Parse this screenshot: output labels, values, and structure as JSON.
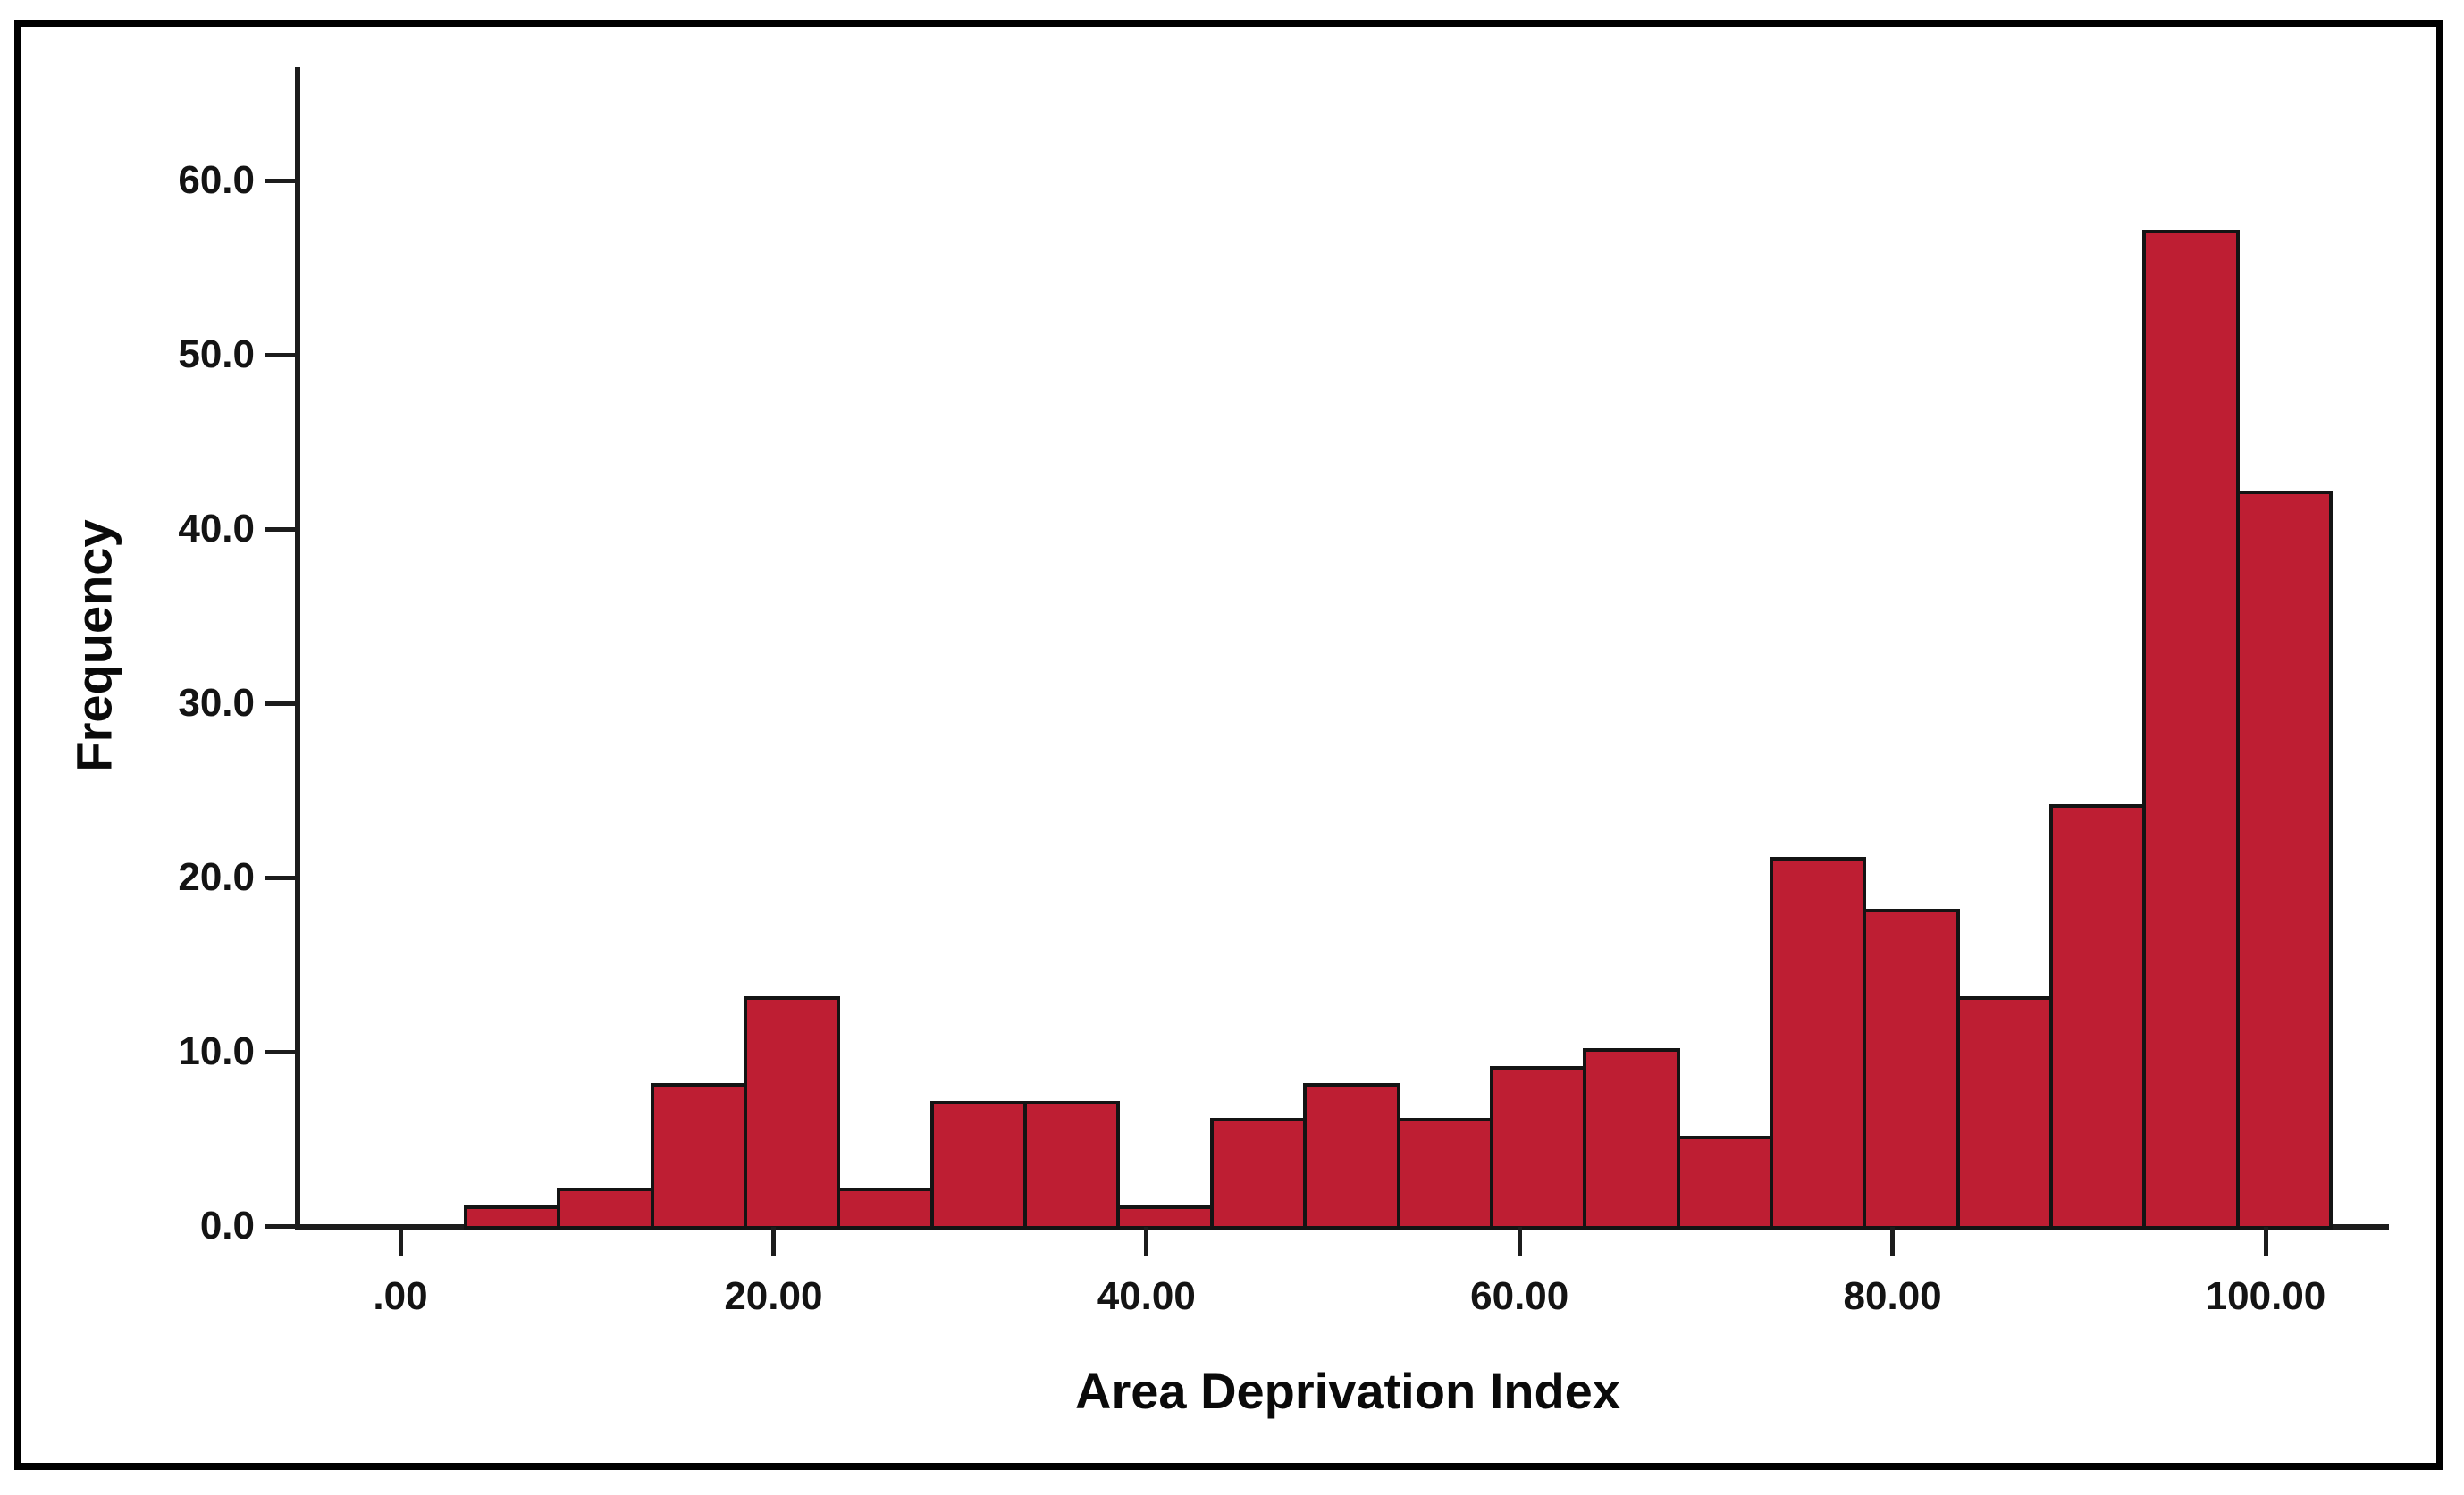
{
  "chart_data": {
    "type": "bar",
    "subtype": "histogram",
    "title": "",
    "xlabel": "Area Deprivation Index",
    "ylabel": "Frequency",
    "bin_width": 5,
    "bin_start": 3.5,
    "categories": [
      "3.5-8.5",
      "8.5-13.5",
      "13.5-18.5",
      "18.5-23.5",
      "23.5-28.5",
      "28.5-33.5",
      "33.5-38.5",
      "38.5-43.5",
      "43.5-48.5",
      "48.5-53.5",
      "53.5-58.5",
      "58.5-63.5",
      "63.5-68.5",
      "68.5-73.5",
      "73.5-78.5",
      "78.5-83.5",
      "83.5-88.5",
      "88.5-93.5",
      "93.5-98.5",
      "98.5-103.5"
    ],
    "values": [
      1,
      2,
      8,
      13,
      2,
      7,
      7,
      1,
      6,
      8,
      6,
      9,
      10,
      5,
      21,
      18,
      13,
      24,
      57,
      42
    ],
    "x_ticks": [
      {
        "value": 0,
        "label": ".00"
      },
      {
        "value": 20,
        "label": "20.00"
      },
      {
        "value": 40,
        "label": "40.00"
      },
      {
        "value": 60,
        "label": "60.00"
      },
      {
        "value": 80,
        "label": "80.00"
      },
      {
        "value": 100,
        "label": "100.00"
      }
    ],
    "y_ticks": [
      {
        "value": 0,
        "label": "0.0"
      },
      {
        "value": 10,
        "label": "10.0"
      },
      {
        "value": 20,
        "label": "20.0"
      },
      {
        "value": 30,
        "label": "30.0"
      },
      {
        "value": 40,
        "label": "40.0"
      },
      {
        "value": 50,
        "label": "50.0"
      },
      {
        "value": 60,
        "label": "60.0"
      }
    ],
    "xlim": [
      -5.5,
      106.5
    ],
    "ylim": [
      0,
      66.5
    ],
    "grid": false,
    "legend": "none",
    "colors": {
      "bar_fill": "#BE1E33",
      "bar_border": "#141414",
      "axis": "#1c1c1c",
      "text": "#141414",
      "frame": "#000000",
      "background": "#ffffff"
    }
  }
}
